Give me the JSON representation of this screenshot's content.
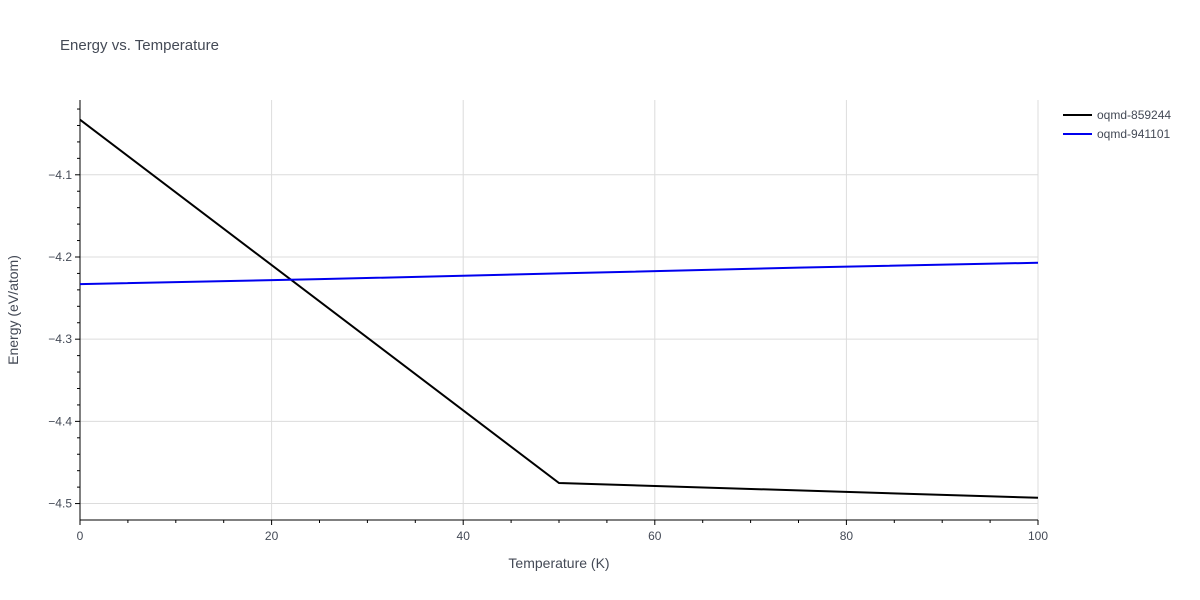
{
  "chart_data": {
    "type": "line",
    "title": "Energy vs. Temperature",
    "xlabel": "Temperature (K)",
    "ylabel": "Energy (eV/atom)",
    "xlim": [
      0,
      100
    ],
    "ylim": [
      -4.52,
      -4.009
    ],
    "x_ticks": [
      0,
      20,
      40,
      60,
      80,
      100
    ],
    "y_ticks": [
      -4.1,
      -4.2,
      -4.3,
      -4.4,
      -4.5
    ],
    "grid": true,
    "legend_position": "top-right",
    "series": [
      {
        "name": "oqmd-859244",
        "color": "#000000",
        "x": [
          0,
          50,
          100
        ],
        "y": [
          -4.033,
          -4.475,
          -4.493
        ]
      },
      {
        "name": "oqmd-941101",
        "color": "#0000ee",
        "x": [
          0,
          25,
          50,
          75,
          100
        ],
        "y": [
          -4.233,
          -4.227,
          -4.22,
          -4.213,
          -4.207
        ]
      }
    ]
  }
}
